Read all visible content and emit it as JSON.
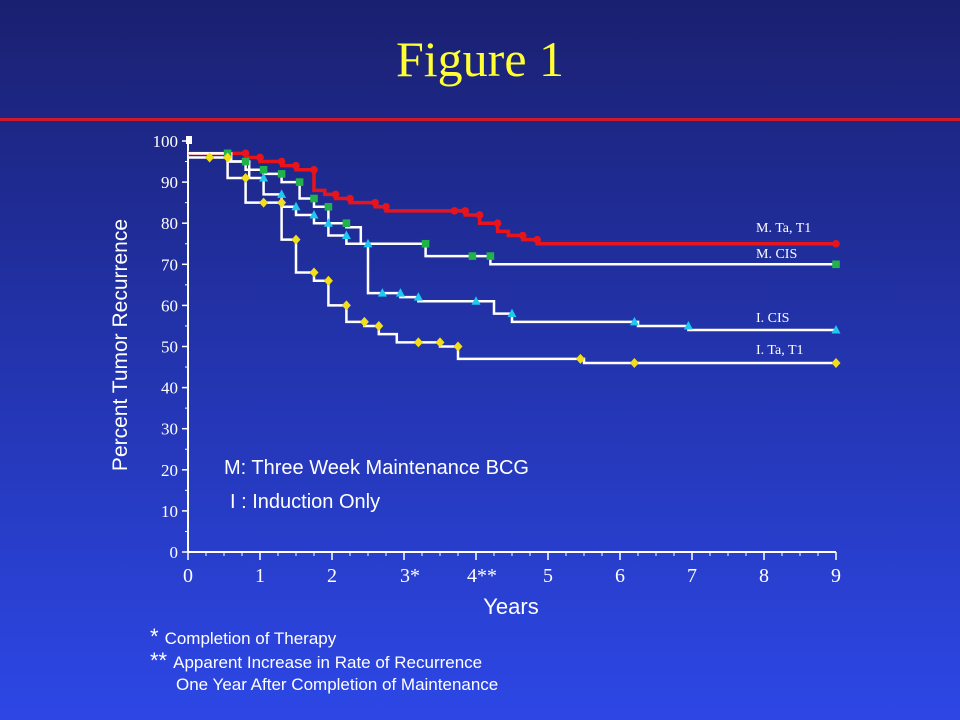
{
  "slide": {
    "title": "Figure 1"
  },
  "footnotes": {
    "star_symbol": "*",
    "star_text": "Completion of Therapy",
    "dstar_symbol": "**",
    "dstar_text": "Apparent Increase in Rate of Recurrence",
    "dstar_text2": "One Year After Completion of Maintenance"
  },
  "chart_data": {
    "type": "line",
    "xlabel": "Years",
    "ylabel": "Percent Tumor Recurrence",
    "xlim": [
      0,
      9
    ],
    "ylim": [
      0,
      100
    ],
    "x_ticks": [
      "0",
      "1",
      "2",
      "3*",
      "4**",
      "5",
      "6",
      "7",
      "8",
      "9"
    ],
    "y_ticks": [
      "0",
      "10",
      "20",
      "30",
      "40",
      "50",
      "60",
      "70",
      "80",
      "90",
      "100"
    ],
    "grid": false,
    "annotations": [
      "M: Three Week Maintenance BCG",
      "I : Induction Only"
    ],
    "series": [
      {
        "name": "M. Ta, T1",
        "color": "#e8141c",
        "marker": "circle",
        "steps": [
          [
            0,
            97
          ],
          [
            0.8,
            96
          ],
          [
            1.0,
            95
          ],
          [
            1.3,
            94
          ],
          [
            1.5,
            93
          ],
          [
            1.75,
            88
          ],
          [
            1.9,
            87
          ],
          [
            2.05,
            86
          ],
          [
            2.25,
            85
          ],
          [
            2.4,
            85
          ],
          [
            2.6,
            84
          ],
          [
            2.75,
            83
          ],
          [
            3.2,
            83
          ],
          [
            3.7,
            83
          ],
          [
            3.85,
            82
          ],
          [
            4.05,
            80
          ],
          [
            4.3,
            78
          ],
          [
            4.45,
            77
          ],
          [
            4.65,
            76
          ],
          [
            4.85,
            75
          ],
          [
            9,
            75
          ]
        ],
        "markers_x": [
          0.8,
          1.0,
          1.3,
          1.5,
          1.75,
          2.05,
          2.25,
          2.6,
          2.75,
          3.7,
          3.85,
          4.05,
          4.3,
          4.65,
          4.85,
          9
        ]
      },
      {
        "name": "M. CIS",
        "color": "#22b24a",
        "marker": "square",
        "steps": [
          [
            0,
            97
          ],
          [
            0.55,
            95
          ],
          [
            0.8,
            93
          ],
          [
            1.05,
            92
          ],
          [
            1.3,
            90
          ],
          [
            1.55,
            86
          ],
          [
            1.75,
            84
          ],
          [
            1.95,
            80
          ],
          [
            2.2,
            79
          ],
          [
            2.4,
            75
          ],
          [
            3.2,
            75
          ],
          [
            3.3,
            72
          ],
          [
            3.95,
            72
          ],
          [
            4.2,
            70
          ],
          [
            9,
            70
          ]
        ],
        "markers_x": [
          0.55,
          0.8,
          1.05,
          1.3,
          1.55,
          1.75,
          1.95,
          2.2,
          3.3,
          3.95,
          4.2,
          9
        ]
      },
      {
        "name": "I. CIS",
        "color": "#1ec8f0",
        "marker": "triangle",
        "steps": [
          [
            0,
            97
          ],
          [
            0.6,
            95
          ],
          [
            0.85,
            91
          ],
          [
            1.05,
            87
          ],
          [
            1.3,
            84
          ],
          [
            1.5,
            82
          ],
          [
            1.75,
            80
          ],
          [
            1.95,
            77
          ],
          [
            2.2,
            75
          ],
          [
            2.5,
            63
          ],
          [
            2.7,
            63
          ],
          [
            2.95,
            62
          ],
          [
            3.2,
            61
          ],
          [
            4.0,
            61
          ],
          [
            4.25,
            58
          ],
          [
            4.5,
            56
          ],
          [
            6.2,
            56
          ],
          [
            6.25,
            55
          ],
          [
            6.95,
            54
          ],
          [
            9,
            54
          ]
        ],
        "markers_x": [
          1.05,
          1.3,
          1.5,
          1.75,
          1.95,
          2.2,
          2.5,
          2.7,
          2.95,
          3.2,
          4.0,
          4.5,
          6.2,
          6.95,
          9
        ]
      },
      {
        "name": "I. Ta, T1",
        "color": "#f2de1a",
        "marker": "diamond",
        "steps": [
          [
            0,
            96
          ],
          [
            0.3,
            96
          ],
          [
            0.55,
            91
          ],
          [
            0.8,
            85
          ],
          [
            1.05,
            85
          ],
          [
            1.3,
            76
          ],
          [
            1.5,
            68
          ],
          [
            1.75,
            66
          ],
          [
            1.95,
            60
          ],
          [
            2.2,
            56
          ],
          [
            2.45,
            55
          ],
          [
            2.65,
            53
          ],
          [
            2.9,
            51
          ],
          [
            3.2,
            51
          ],
          [
            3.5,
            50
          ],
          [
            3.75,
            47
          ],
          [
            5.45,
            47
          ],
          [
            5.5,
            46
          ],
          [
            6.2,
            46
          ],
          [
            9,
            46
          ]
        ],
        "markers_x": [
          0.3,
          0.55,
          0.8,
          1.05,
          1.3,
          1.5,
          1.75,
          1.95,
          2.2,
          2.45,
          2.65,
          3.2,
          3.5,
          3.75,
          5.45,
          6.2,
          9
        ]
      }
    ]
  }
}
